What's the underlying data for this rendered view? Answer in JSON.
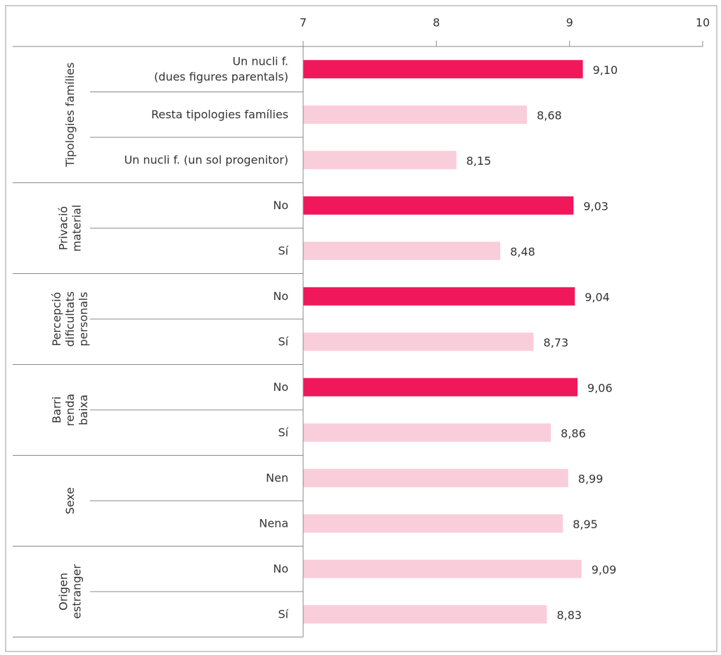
{
  "chart_data": {
    "type": "bar",
    "orientation": "horizontal",
    "xlim": [
      7,
      10
    ],
    "xticks": [
      7,
      8,
      9,
      10
    ],
    "groups": [
      {
        "name": "Tipologies famílies",
        "categories": [
          "Un nucli f.\n(dues figures parentals)",
          "Resta tipologies famílies",
          "Un nucli f. (un sol progenitor)"
        ],
        "values": [
          9.1,
          8.68,
          8.15
        ],
        "value_labels": [
          "9,10",
          "8,68",
          "8,15"
        ],
        "colors": [
          "#f0185a",
          "#f9cdd9",
          "#f9cdd9"
        ]
      },
      {
        "name": "Privació\nmaterial",
        "categories": [
          "No",
          "Sí"
        ],
        "values": [
          9.03,
          8.48
        ],
        "value_labels": [
          "9,03",
          "8,48"
        ],
        "colors": [
          "#f0185a",
          "#f9cdd9"
        ]
      },
      {
        "name": "Percepció\ndificultats\npersonals",
        "categories": [
          "No",
          "Sí"
        ],
        "values": [
          9.04,
          8.73
        ],
        "value_labels": [
          "9,04",
          "8,73"
        ],
        "colors": [
          "#f0185a",
          "#f9cdd9"
        ]
      },
      {
        "name": "Barri\nrenda\nbaixa",
        "categories": [
          "No",
          "Sí"
        ],
        "values": [
          9.06,
          8.86
        ],
        "value_labels": [
          "9,06",
          "8,86"
        ],
        "colors": [
          "#f0185a",
          "#f9cdd9"
        ]
      },
      {
        "name": "Sexe",
        "categories": [
          "Nen",
          "Nena"
        ],
        "values": [
          8.99,
          8.95
        ],
        "value_labels": [
          "8,99",
          "8,95"
        ],
        "colors": [
          "#f9cdd9",
          "#f9cdd9"
        ]
      },
      {
        "name": "Origen\nestranger",
        "categories": [
          "No",
          "Sí"
        ],
        "values": [
          9.09,
          8.83
        ],
        "value_labels": [
          "9,09",
          "8,83"
        ],
        "colors": [
          "#f9cdd9",
          "#f9cdd9"
        ]
      }
    ]
  }
}
